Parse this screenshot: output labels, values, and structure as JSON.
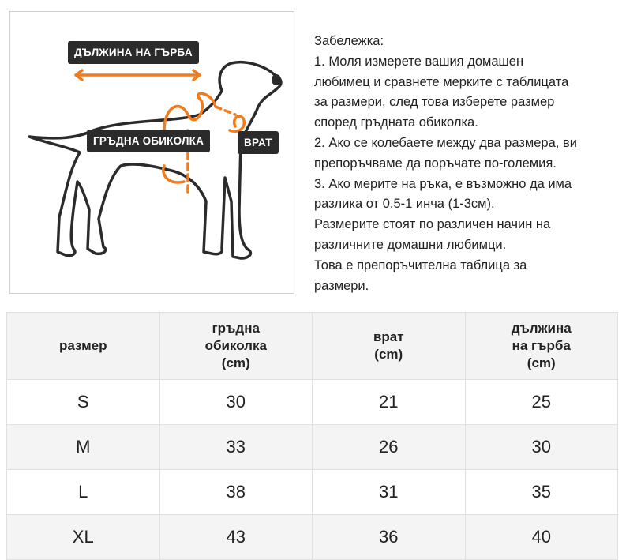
{
  "illustration": {
    "label_back_length": "ДЪЛЖИНА НА ГЪРБА",
    "label_chest": "ГРЪДНА ОБИКОЛКА",
    "label_neck": "ВРАТ",
    "accent_color": "#f07c1e",
    "outline_color": "#2b2b2b"
  },
  "notes": [
    "Забележка:",
    "1. Моля измерете вашия домашен",
    "любимец и сравнете мерките с таблицата",
    "за размери, след това изберете размер",
    "според гръдната обиколка.",
    "2. Ако се колебаете между два размера, ви",
    "препоръчваме да поръчате по-големия.",
    "3. Ако мерите на ръка, е възможно да има",
    "разлика от 0.5-1 инча (1-3см).",
    "Размерите стоят по различен начин на",
    "различните домашни любимци.",
    "Това е препоръчителна таблица за",
    "размери."
  ],
  "table": {
    "headers": [
      [
        "размер"
      ],
      [
        "гръдна",
        "обиколка",
        "(cm)"
      ],
      [
        "врат",
        "(cm)"
      ],
      [
        "дължина",
        "на гърба",
        "(cm)"
      ]
    ],
    "rows": [
      [
        "S",
        "30",
        "21",
        "25"
      ],
      [
        "M",
        "33",
        "26",
        "30"
      ],
      [
        "L",
        "38",
        "31",
        "35"
      ],
      [
        "XL",
        "43",
        "36",
        "40"
      ]
    ]
  }
}
